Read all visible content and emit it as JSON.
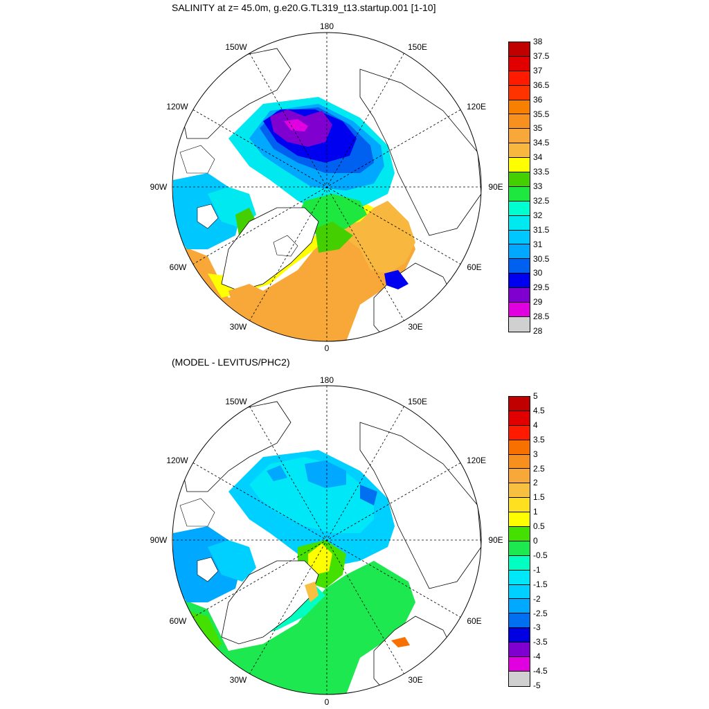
{
  "panel1": {
    "title": "SALINITY at z=  45.0m, g.e20.G.TL319_t13.startup.001 [1-10]",
    "lon_labels": {
      "top": "180",
      "bottom": "0",
      "left": "90W",
      "right": "90E",
      "w150": "150W",
      "e150": "150E",
      "w120": "120W",
      "e120": "120E",
      "w60": "60W",
      "e60": "60E",
      "w30": "30W",
      "e30": "30E"
    },
    "colorbar": {
      "labels": [
        "38",
        "37.5",
        "37",
        "36.5",
        "36",
        "35.5",
        "35",
        "34.5",
        "34",
        "33.5",
        "33",
        "32.5",
        "32",
        "31.5",
        "31",
        "30.5",
        "30",
        "29.5",
        "29",
        "28.5",
        "28"
      ],
      "colors": [
        "#c00000",
        "#e00000",
        "#ff1a00",
        "#ff3300",
        "#f88000",
        "#f89020",
        "#f8a838",
        "#f8b840",
        "#ffff00",
        "#44d000",
        "#1ee840",
        "#00ffd0",
        "#00e8f0",
        "#00c8ff",
        "#00a8ff",
        "#0060f0",
        "#0000f0",
        "#8000d0",
        "#e000e0",
        "#d0d0d0",
        "#707070"
      ]
    }
  },
  "panel2": {
    "title": "(MODEL - LEVITUS/PHC2)",
    "lon_labels": {
      "top": "180",
      "bottom": "0",
      "left": "90W",
      "right": "90E",
      "w150": "150W",
      "e150": "150E",
      "w120": "120W",
      "e120": "120E",
      "w60": "60W",
      "e60": "60E",
      "w30": "30W",
      "e30": "30E"
    },
    "colorbar": {
      "labels": [
        "5",
        "4.5",
        "4",
        "3.5",
        "3",
        "2.5",
        "2",
        "1.5",
        "1",
        "0.5",
        "0",
        "-0.5",
        "-1",
        "-1.5",
        "-2",
        "-2.5",
        "-3",
        "-3.5",
        "-4",
        "-4.5",
        "-5"
      ],
      "colors": [
        "#c00000",
        "#e00000",
        "#ff1a00",
        "#f87000",
        "#f89020",
        "#f8a838",
        "#f8c040",
        "#ffe020",
        "#ffff00",
        "#44e000",
        "#1ee850",
        "#00ffc0",
        "#00e8f8",
        "#00d0ff",
        "#00a8ff",
        "#0070f0",
        "#0000e0",
        "#8000d0",
        "#e000e0",
        "#d0d0d0",
        "#707070"
      ]
    }
  }
}
